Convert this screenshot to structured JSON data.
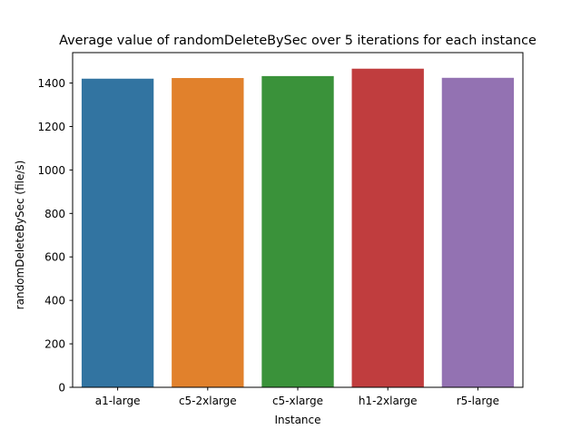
{
  "chart_data": {
    "type": "bar",
    "title": "Average value of randomDeleteBySec over 5 iterations for each instance",
    "xlabel": "Instance",
    "ylabel": "randomDeleteBySec (file/s)",
    "categories": [
      "a1-large",
      "c5-2xlarge",
      "c5-xlarge",
      "h1-2xlarge",
      "r5-large"
    ],
    "values": [
      1420,
      1423,
      1432,
      1466,
      1424
    ],
    "colors": [
      "#3274a1",
      "#e1812c",
      "#3a923a",
      "#c03d3e",
      "#9372b2"
    ],
    "ylim": [
      0,
      1540
    ],
    "yticks": [
      0,
      200,
      400,
      600,
      800,
      1000,
      1200,
      1400
    ],
    "grid": false,
    "legend": "none"
  }
}
